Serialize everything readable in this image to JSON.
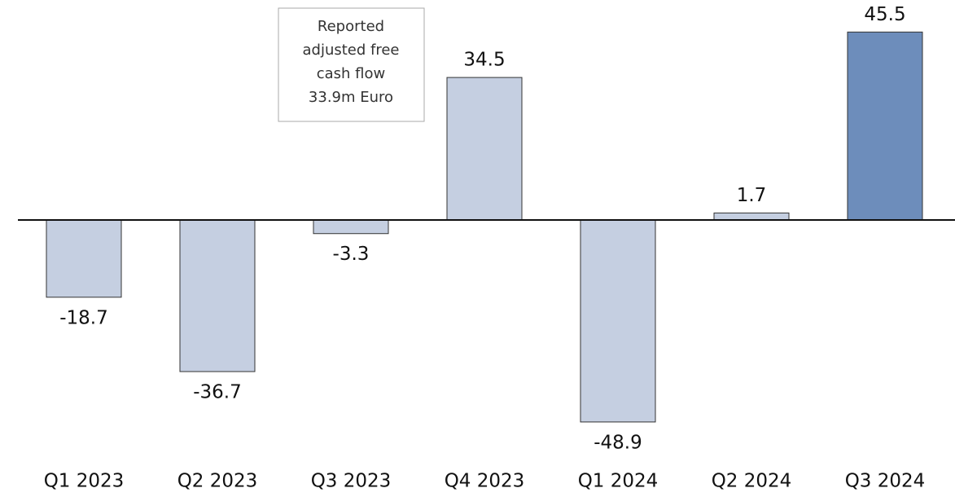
{
  "chart_data": {
    "type": "bar",
    "categories": [
      "Q1 2023",
      "Q2 2023",
      "Q3 2023",
      "Q4 2023",
      "Q1 2024",
      "Q2 2024",
      "Q3 2024"
    ],
    "values": [
      -18.7,
      -36.7,
      -3.3,
      34.5,
      -48.9,
      1.7,
      45.5
    ],
    "colors": [
      "#c5cfe1",
      "#c5cfe1",
      "#c5cfe1",
      "#c5cfe1",
      "#c5cfe1",
      "#c5cfe1",
      "#6d8dbb"
    ],
    "annotation": [
      "Reported",
      "adjusted free",
      "cash flow",
      "33.9m Euro"
    ]
  }
}
